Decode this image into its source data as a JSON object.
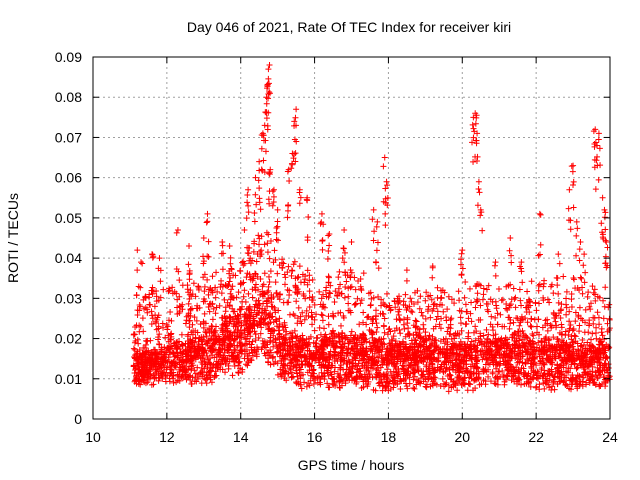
{
  "chart_data": {
    "type": "scatter",
    "title": "Day 046 of 2021, Rate Of TEC Index for receiver kiri",
    "xlabel": "GPS time / hours",
    "ylabel": "ROTI / TECUs",
    "xlim": [
      10,
      24
    ],
    "ylim": [
      0,
      0.09
    ],
    "grid": true,
    "marker": "+",
    "color": "#ff0000",
    "x_ticks": [
      "10",
      "12",
      "14",
      "16",
      "18",
      "20",
      "22",
      "24"
    ],
    "y_ticks": [
      "0",
      "0.01",
      "0.02",
      "0.03",
      "0.04",
      "0.05",
      "0.06",
      "0.07",
      "0.08",
      "0.09"
    ],
    "dense_band": {
      "x_range": [
        11.1,
        24.0
      ],
      "envelope": [
        {
          "x": 11.1,
          "low": 0.007,
          "mid": 0.013,
          "high": 0.03
        },
        {
          "x": 12.0,
          "low": 0.007,
          "mid": 0.014,
          "high": 0.033
        },
        {
          "x": 13.0,
          "low": 0.006,
          "mid": 0.016,
          "high": 0.035
        },
        {
          "x": 14.0,
          "low": 0.008,
          "mid": 0.02,
          "high": 0.04
        },
        {
          "x": 14.6,
          "low": 0.012,
          "mid": 0.025,
          "high": 0.048
        },
        {
          "x": 15.2,
          "low": 0.006,
          "mid": 0.016,
          "high": 0.04
        },
        {
          "x": 16.0,
          "low": 0.005,
          "mid": 0.015,
          "high": 0.036
        },
        {
          "x": 17.0,
          "low": 0.005,
          "mid": 0.016,
          "high": 0.038
        },
        {
          "x": 18.0,
          "low": 0.005,
          "mid": 0.014,
          "high": 0.03
        },
        {
          "x": 19.0,
          "low": 0.005,
          "mid": 0.015,
          "high": 0.032
        },
        {
          "x": 20.0,
          "low": 0.005,
          "mid": 0.014,
          "high": 0.034
        },
        {
          "x": 21.0,
          "low": 0.006,
          "mid": 0.016,
          "high": 0.034
        },
        {
          "x": 22.0,
          "low": 0.005,
          "mid": 0.015,
          "high": 0.034
        },
        {
          "x": 23.0,
          "low": 0.005,
          "mid": 0.014,
          "high": 0.036
        },
        {
          "x": 24.0,
          "low": 0.006,
          "mid": 0.014,
          "high": 0.03
        }
      ]
    },
    "outliers": [
      [
        11.2,
        0.042
      ],
      [
        11.3,
        0.039
      ],
      [
        11.6,
        0.041
      ],
      [
        11.8,
        0.04
      ],
      [
        12.3,
        0.047
      ],
      [
        12.6,
        0.043
      ],
      [
        13.0,
        0.045
      ],
      [
        13.1,
        0.051
      ],
      [
        13.5,
        0.044
      ],
      [
        13.7,
        0.043
      ],
      [
        14.1,
        0.047
      ],
      [
        14.2,
        0.053
      ],
      [
        14.2,
        0.057
      ],
      [
        14.4,
        0.06
      ],
      [
        14.5,
        0.064
      ],
      [
        14.6,
        0.071
      ],
      [
        14.65,
        0.073
      ],
      [
        14.7,
        0.08
      ],
      [
        14.72,
        0.083
      ],
      [
        14.75,
        0.087
      ],
      [
        14.78,
        0.088
      ],
      [
        14.8,
        0.062
      ],
      [
        14.9,
        0.057
      ],
      [
        15.0,
        0.052
      ],
      [
        15.3,
        0.062
      ],
      [
        15.4,
        0.066
      ],
      [
        15.45,
        0.074
      ],
      [
        15.5,
        0.077
      ],
      [
        15.6,
        0.057
      ],
      [
        15.8,
        0.055
      ],
      [
        16.2,
        0.051
      ],
      [
        16.4,
        0.046
      ],
      [
        16.8,
        0.047
      ],
      [
        17.0,
        0.044
      ],
      [
        17.6,
        0.052
      ],
      [
        17.7,
        0.049
      ],
      [
        17.9,
        0.065
      ],
      [
        17.95,
        0.059
      ],
      [
        18.5,
        0.037
      ],
      [
        19.2,
        0.038
      ],
      [
        20.0,
        0.042
      ],
      [
        20.3,
        0.075
      ],
      [
        20.35,
        0.076
      ],
      [
        20.4,
        0.071
      ],
      [
        20.45,
        0.059
      ],
      [
        20.5,
        0.052
      ],
      [
        20.9,
        0.039
      ],
      [
        21.3,
        0.045
      ],
      [
        21.6,
        0.039
      ],
      [
        22.1,
        0.051
      ],
      [
        22.6,
        0.041
      ],
      [
        22.9,
        0.057
      ],
      [
        23.0,
        0.063
      ],
      [
        23.1,
        0.049
      ],
      [
        23.2,
        0.044
      ],
      [
        23.3,
        0.041
      ],
      [
        23.6,
        0.072
      ],
      [
        23.65,
        0.068
      ],
      [
        23.7,
        0.071
      ],
      [
        23.8,
        0.055
      ],
      [
        23.85,
        0.052
      ],
      [
        23.9,
        0.044
      ]
    ]
  }
}
